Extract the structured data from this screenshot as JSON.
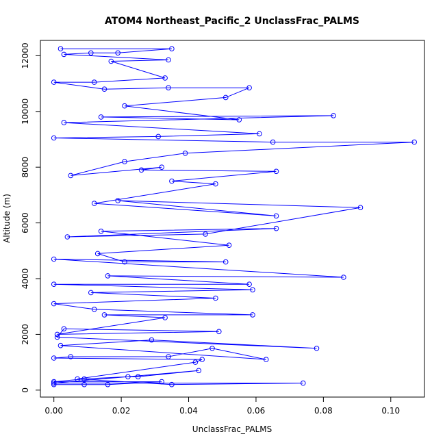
{
  "chart_data": {
    "type": "line",
    "title": "ATOM4 Northeast_Pacific_2 UnclassFrac_PALMS",
    "xlabel": "UnclassFrac_PALMS",
    "ylabel": "Altitude (m)",
    "xlim": [
      -0.004,
      0.11
    ],
    "ylim": [
      -250,
      12550
    ],
    "xticks": [
      0.0,
      0.02,
      0.04,
      0.06,
      0.08,
      0.1
    ],
    "xtick_labels": [
      "0.00",
      "0.02",
      "0.04",
      "0.06",
      "0.08",
      "0.10"
    ],
    "yticks": [
      0,
      2000,
      4000,
      6000,
      8000,
      10000,
      12000
    ],
    "ytick_labels": [
      "0",
      "2000",
      "4000",
      "6000",
      "8000",
      "10000",
      "12000"
    ],
    "grid": false,
    "series": [
      {
        "color": "#0000ff",
        "marker": "open-circle",
        "points": [
          [
            0.0,
            200
          ],
          [
            0.009,
            200
          ],
          [
            0.016,
            200
          ],
          [
            0.032,
            300
          ],
          [
            0.0,
            300
          ],
          [
            0.009,
            400
          ],
          [
            0.022,
            480
          ],
          [
            0.025,
            480
          ],
          [
            0.043,
            700
          ],
          [
            0.0,
            250
          ],
          [
            0.074,
            250
          ],
          [
            0.035,
            200
          ],
          [
            0.007,
            400
          ],
          [
            0.042,
            1000
          ],
          [
            0.044,
            1100
          ],
          [
            0.0,
            1150
          ],
          [
            0.005,
            1200
          ],
          [
            0.034,
            1200
          ],
          [
            0.047,
            1500
          ],
          [
            0.063,
            1100
          ],
          [
            0.002,
            1600
          ],
          [
            0.029,
            1800
          ],
          [
            0.078,
            1500
          ],
          [
            0.001,
            1900
          ],
          [
            0.003,
            2200
          ],
          [
            0.049,
            2100
          ],
          [
            0.001,
            2000
          ],
          [
            0.033,
            2600
          ],
          [
            0.015,
            2700
          ],
          [
            0.059,
            2700
          ],
          [
            0.012,
            2900
          ],
          [
            0.0,
            3100
          ],
          [
            0.048,
            3300
          ],
          [
            0.011,
            3500
          ],
          [
            0.059,
            3600
          ],
          [
            0.0,
            3800
          ],
          [
            0.058,
            3800
          ],
          [
            0.016,
            4100
          ],
          [
            0.086,
            4050
          ],
          [
            0.0,
            4700
          ],
          [
            0.051,
            4600
          ],
          [
            0.021,
            4600
          ],
          [
            0.013,
            4900
          ],
          [
            0.052,
            5200
          ],
          [
            0.014,
            5700
          ],
          [
            0.066,
            5800
          ],
          [
            0.004,
            5500
          ],
          [
            0.045,
            5600
          ],
          [
            0.091,
            6550
          ],
          [
            0.019,
            6800
          ],
          [
            0.066,
            6250
          ],
          [
            0.012,
            6700
          ],
          [
            0.048,
            7400
          ],
          [
            0.035,
            7500
          ],
          [
            0.066,
            7850
          ],
          [
            0.026,
            7900
          ],
          [
            0.032,
            8000
          ],
          [
            0.005,
            7700
          ],
          [
            0.021,
            8200
          ],
          [
            0.039,
            8500
          ],
          [
            0.107,
            8900
          ],
          [
            0.065,
            8900
          ],
          [
            0.0,
            9050
          ],
          [
            0.031,
            9100
          ],
          [
            0.061,
            9200
          ],
          [
            0.003,
            9600
          ],
          [
            0.083,
            9850
          ],
          [
            0.014,
            9800
          ],
          [
            0.055,
            9700
          ],
          [
            0.021,
            10200
          ],
          [
            0.051,
            10500
          ],
          [
            0.058,
            10850
          ],
          [
            0.034,
            10850
          ],
          [
            0.015,
            10800
          ],
          [
            0.0,
            11050
          ],
          [
            0.012,
            11050
          ],
          [
            0.033,
            11200
          ],
          [
            0.017,
            11800
          ],
          [
            0.034,
            11850
          ],
          [
            0.003,
            12050
          ],
          [
            0.011,
            12100
          ],
          [
            0.019,
            12100
          ],
          [
            0.035,
            12250
          ],
          [
            0.002,
            12250
          ]
        ]
      }
    ]
  }
}
